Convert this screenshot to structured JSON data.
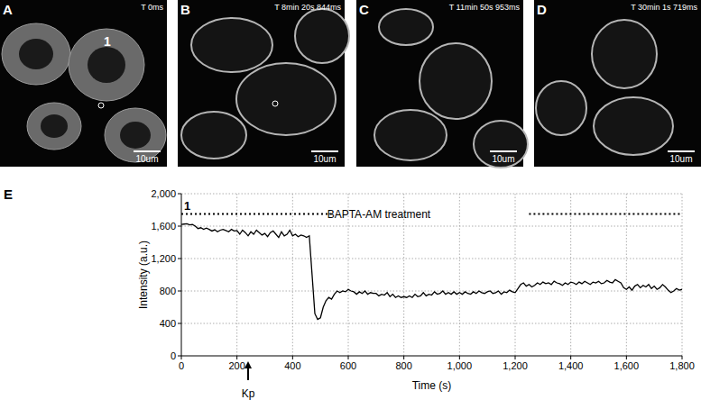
{
  "panels": [
    {
      "label": "A",
      "time": "T 0ms",
      "scale_bar": "10um",
      "cell_label": "1"
    },
    {
      "label": "B",
      "time": "T 8min 20s 844ms",
      "scale_bar": "10um"
    },
    {
      "label": "C",
      "time": "T 11min 50s 953ms",
      "scale_bar": "10um"
    },
    {
      "label": "D",
      "time": "T 30min 1s 719ms",
      "scale_bar": "10um"
    }
  ],
  "chart_data": {
    "type": "line",
    "panel_label": "E",
    "color": "#000000",
    "grid": true,
    "xlabel": "Time (s)",
    "ylabel": "Intensity (a.u.)",
    "xlim": [
      0,
      1800
    ],
    "ylim": [
      0,
      2000
    ],
    "xticks": [
      0,
      200,
      400,
      600,
      800,
      {
        "value": 1000,
        "label": "1,000"
      },
      {
        "value": 1200,
        "label": "1,200"
      },
      {
        "value": 1400,
        "label": "1,400"
      },
      {
        "value": 1600,
        "label": "1,600"
      },
      {
        "value": 1800,
        "label": "1,800"
      }
    ],
    "yticks": [
      0,
      400,
      800,
      {
        "value": 1200,
        "label": "1,200"
      },
      {
        "value": 1600,
        "label": "1,600"
      },
      {
        "value": 2000,
        "label": "2,000"
      }
    ],
    "annotations": [
      {
        "text": "1",
        "x": 10,
        "y": 1800
      },
      {
        "text": "BAPTA-AM treatment",
        "x": 710,
        "y": 1750,
        "segments": [
          [
            0,
            540
          ],
          [
            1250,
            1800
          ]
        ]
      },
      {
        "text": "Kp",
        "x": 240
      }
    ],
    "x": [
      0,
      10,
      20,
      30,
      40,
      50,
      60,
      70,
      80,
      90,
      100,
      110,
      120,
      130,
      140,
      150,
      160,
      170,
      180,
      190,
      200,
      210,
      220,
      230,
      240,
      250,
      260,
      270,
      280,
      290,
      300,
      310,
      320,
      330,
      340,
      350,
      360,
      370,
      380,
      390,
      400,
      410,
      420,
      430,
      440,
      450,
      460,
      470,
      480,
      490,
      500,
      510,
      520,
      530,
      540,
      550,
      560,
      570,
      580,
      590,
      600,
      610,
      620,
      630,
      640,
      650,
      660,
      670,
      680,
      690,
      700,
      710,
      720,
      730,
      740,
      750,
      760,
      770,
      780,
      790,
      800,
      810,
      820,
      830,
      840,
      850,
      860,
      870,
      880,
      890,
      900,
      910,
      920,
      930,
      940,
      950,
      960,
      970,
      980,
      990,
      1000,
      1010,
      1020,
      1030,
      1040,
      1050,
      1060,
      1070,
      1080,
      1090,
      1100,
      1110,
      1120,
      1130,
      1140,
      1150,
      1160,
      1170,
      1180,
      1190,
      1200,
      1210,
      1220,
      1230,
      1240,
      1250,
      1260,
      1270,
      1280,
      1290,
      1300,
      1310,
      1320,
      1330,
      1340,
      1350,
      1360,
      1370,
      1380,
      1390,
      1400,
      1410,
      1420,
      1430,
      1440,
      1450,
      1460,
      1470,
      1480,
      1490,
      1500,
      1510,
      1520,
      1530,
      1540,
      1550,
      1560,
      1570,
      1580,
      1590,
      1600,
      1610,
      1620,
      1630,
      1640,
      1650,
      1660,
      1670,
      1680,
      1690,
      1700,
      1710,
      1720,
      1730,
      1740,
      1750,
      1760,
      1770,
      1780,
      1790,
      1800
    ],
    "values": [
      1620,
      1625,
      1630,
      1615,
      1620,
      1600,
      1570,
      1580,
      1560,
      1575,
      1560,
      1540,
      1555,
      1530,
      1550,
      1560,
      1545,
      1530,
      1560,
      1540,
      1545,
      1500,
      1550,
      1520,
      1480,
      1530,
      1500,
      1550,
      1520,
      1490,
      1510,
      1470,
      1520,
      1540,
      1500,
      1460,
      1530,
      1480,
      1500,
      1550,
      1480,
      1500,
      1470,
      1490,
      1480,
      1460,
      1480,
      1000,
      520,
      450,
      470,
      600,
      680,
      720,
      700,
      760,
      800,
      780,
      800,
      790,
      820,
      800,
      790,
      760,
      790,
      770,
      800,
      760,
      780,
      770,
      770,
      740,
      760,
      750,
      780,
      730,
      760,
      720,
      740,
      720,
      730,
      720,
      740,
      720,
      760,
      730,
      740,
      780,
      740,
      760,
      750,
      790,
      760,
      770,
      800,
      760,
      780,
      760,
      790,
      760,
      780,
      760,
      790,
      770,
      760,
      790,
      770,
      800,
      780,
      770,
      790,
      800,
      770,
      780,
      800,
      760,
      790,
      780,
      810,
      790,
      780,
      830,
      880,
      900,
      860,
      880,
      850,
      870,
      900,
      880,
      910,
      890,
      900,
      880,
      920,
      900,
      890,
      870,
      900,
      880,
      910,
      900,
      880,
      910,
      890,
      920,
      900,
      880,
      910,
      900,
      920,
      890,
      900,
      930,
      910,
      900,
      940,
      920,
      900,
      840,
      820,
      850,
      810,
      860,
      880,
      840,
      870,
      850,
      880,
      830,
      860,
      820,
      840,
      880,
      850,
      810,
      780,
      800,
      830,
      810,
      820
    ]
  }
}
